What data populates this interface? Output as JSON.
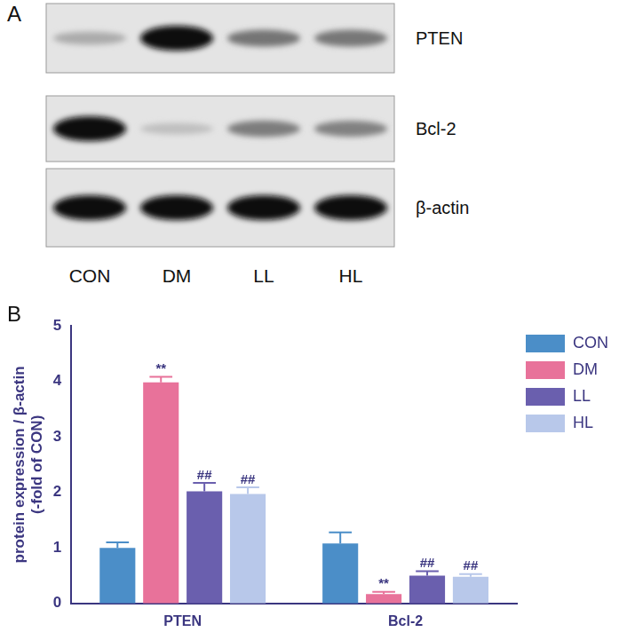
{
  "panel_labels": [
    "A",
    "B"
  ],
  "blot": {
    "lanes": [
      "CON",
      "DM",
      "LL",
      "HL"
    ],
    "rows": [
      "PTEN",
      "Bcl-2",
      "β-actin"
    ]
  },
  "chart_data": {
    "type": "bar",
    "categories": [
      "PTEN",
      "Bcl-2"
    ],
    "y_label": [
      "protein expression / β-actin",
      "(-fold of CON)"
    ],
    "ylim": [
      0,
      5
    ],
    "yticks": [
      0,
      1,
      2,
      3,
      4,
      5
    ],
    "grid": false,
    "legend": "right",
    "series": [
      {
        "name": "CON",
        "color": "#4b8ec8",
        "values": [
          1.0,
          1.08
        ],
        "errors": [
          0.1,
          0.2
        ],
        "annotations": [
          null,
          null
        ]
      },
      {
        "name": "DM",
        "color": "#e8729a",
        "values": [
          3.98,
          0.17
        ],
        "errors": [
          0.1,
          0.04
        ],
        "annotations": [
          "**",
          "**"
        ]
      },
      {
        "name": "LL",
        "color": "#6a5fae",
        "values": [
          2.02,
          0.5
        ],
        "errors": [
          0.15,
          0.08
        ],
        "annotations": [
          "##",
          "##"
        ]
      },
      {
        "name": "HL",
        "color": "#b8c8ea",
        "values": [
          1.97,
          0.48
        ],
        "errors": [
          0.12,
          0.05
        ],
        "annotations": [
          "##",
          "##"
        ]
      }
    ]
  }
}
